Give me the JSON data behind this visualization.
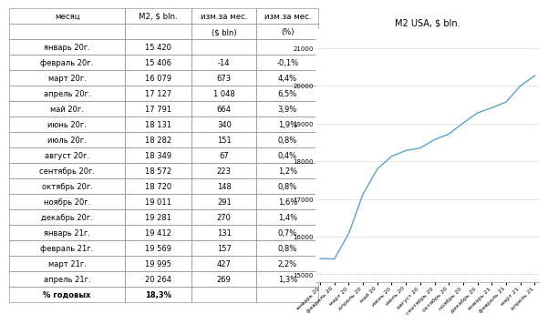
{
  "table_months": [
    "январь 20г.",
    "февраль 20г.",
    "март 20г.",
    "апрель 20г.",
    "май 20г.",
    "июнь 20г.",
    "июль 20г.",
    "август 20г.",
    "сентябрь 20г.",
    "октябрь 20г.",
    "ноябрь 20г.",
    "декабрь 20г.",
    "январь 21г.",
    "февраль 21г.",
    "март 21г.",
    "апрель 21г.",
    "% годовых"
  ],
  "table_m2": [
    "15 420",
    "15 406",
    "16 079",
    "17 127",
    "17 791",
    "18 131",
    "18 282",
    "18 349",
    "18 572",
    "18 720",
    "19 011",
    "19 281",
    "19 412",
    "19 569",
    "19 995",
    "20 264",
    "18,3%"
  ],
  "table_chg_bln": [
    "",
    "-14",
    "673",
    "1 048",
    "664",
    "340",
    "151",
    "67",
    "223",
    "148",
    "291",
    "270",
    "131",
    "157",
    "427",
    "269",
    ""
  ],
  "table_chg_pct": [
    "",
    "-0,1%",
    "4,4%",
    "6,5%",
    "3,9%",
    "1,9%",
    "0,8%",
    "0,4%",
    "1,2%",
    "0,8%",
    "1,6%",
    "1,4%",
    "0,7%",
    "0,8%",
    "2,2%",
    "1,3%",
    ""
  ],
  "col_header_month": "месяц",
  "col_header_m2": "M2, $ bln.",
  "col_header_chg": "изм.за мес.",
  "col_subheader_bln": "($ bln)",
  "col_subheader_pct": "(%)",
  "chart_title": "M2 USA, $ bln.",
  "chart_x_labels": [
    "январь 20",
    "февраль 20",
    "март 20",
    "апрель 20",
    "май 20",
    "июнь 20",
    "июль 20",
    "август 20",
    "сентябрь 20",
    "октябрь 20",
    "ноябрь 20",
    "декабрь 20",
    "январь 21",
    "февраль 21",
    "март 21",
    "апрель 21"
  ],
  "chart_y_values": [
    15420,
    15406,
    16079,
    17127,
    17791,
    18131,
    18282,
    18349,
    18572,
    18720,
    19011,
    19281,
    19412,
    19569,
    19995,
    20264
  ],
  "chart_y_ticks": [
    15000,
    16000,
    17000,
    18000,
    19000,
    20000,
    21000
  ],
  "line_color": "#5BA3C9",
  "bg_color": "#ffffff",
  "text_color": "#000000",
  "border_color": "#999999",
  "grid_color": "#d9d9d9"
}
